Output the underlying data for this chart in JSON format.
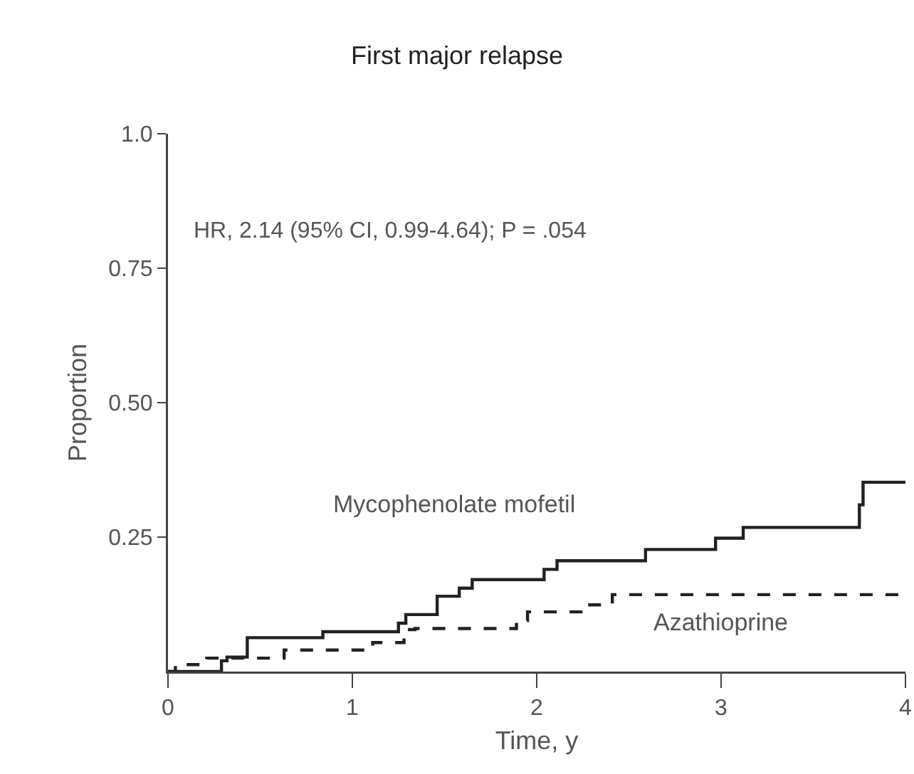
{
  "chart_data": {
    "type": "step",
    "title": "First major relapse",
    "xlabel": "Time, y",
    "ylabel": "Proportion",
    "annotations": [
      "HR, 2.14 (95% CI, 0.99-4.64); P = .054"
    ],
    "xlim": [
      0,
      4
    ],
    "xticks": [
      0,
      1,
      2,
      3,
      4
    ],
    "ylim": [
      0,
      1
    ],
    "yticks": [
      {
        "value": 0.25,
        "label": "0.25"
      },
      {
        "value": 0.5,
        "label": "0.50"
      },
      {
        "value": 0.75,
        "label": "0.75"
      },
      {
        "value": 1,
        "label": "1.0"
      }
    ],
    "grid": false,
    "legend": false,
    "marker": "none",
    "series": [
      {
        "name": "Mycophenolate mofetil",
        "color": "#222222",
        "line_style": "solid",
        "x": [
          0,
          0.29,
          0.32,
          0.43,
          0.84,
          1.25,
          1.29,
          1.46,
          1.58,
          1.65,
          2.04,
          2.11,
          2.59,
          2.97,
          3.12,
          3.75,
          3.77,
          4
        ],
        "values": [
          0,
          0.02,
          0.027,
          0.063,
          0.074,
          0.09,
          0.106,
          0.14,
          0.155,
          0.171,
          0.19,
          0.206,
          0.227,
          0.248,
          0.268,
          0.31,
          0.352,
          0.352
        ]
      },
      {
        "name": "Azathioprine",
        "color": "#222222",
        "line_style": "dashed",
        "x": [
          0,
          0.04,
          0.21,
          0.63,
          1.11,
          1.28,
          1.34,
          1.89,
          1.95,
          2.24,
          2.41,
          4
        ],
        "values": [
          0,
          0.013,
          0.025,
          0.04,
          0.054,
          0.078,
          0.08,
          0.095,
          0.111,
          0.124,
          0.143,
          0.143
        ]
      }
    ]
  }
}
